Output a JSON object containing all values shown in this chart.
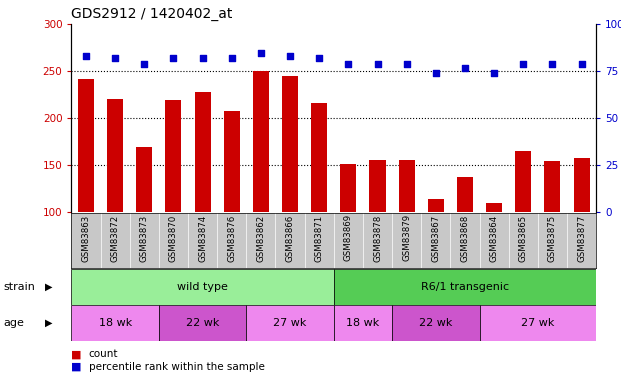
{
  "title": "GDS2912 / 1420402_at",
  "samples": [
    "GSM83863",
    "GSM83872",
    "GSM83873",
    "GSM83870",
    "GSM83874",
    "GSM83876",
    "GSM83862",
    "GSM83866",
    "GSM83871",
    "GSM83869",
    "GSM83878",
    "GSM83879",
    "GSM83867",
    "GSM83868",
    "GSM83864",
    "GSM83865",
    "GSM83875",
    "GSM83877"
  ],
  "bar_values": [
    242,
    220,
    169,
    219,
    228,
    208,
    250,
    245,
    216,
    151,
    155,
    155,
    114,
    137,
    110,
    165,
    154,
    157
  ],
  "dot_values_pct": [
    83,
    82,
    79,
    82,
    82,
    82,
    85,
    83,
    82,
    79,
    79,
    79,
    74,
    77,
    74,
    79,
    79,
    79
  ],
  "bar_color": "#cc0000",
  "dot_color": "#0000cc",
  "ylim_left": [
    100,
    300
  ],
  "ylim_right": [
    0,
    100
  ],
  "yticks_left": [
    100,
    150,
    200,
    250,
    300
  ],
  "yticks_right": [
    0,
    25,
    50,
    75,
    100
  ],
  "grid_values": [
    150,
    200,
    250
  ],
  "strain_groups": [
    {
      "label": "wild type",
      "start": 0,
      "end": 9,
      "color": "#99ee99"
    },
    {
      "label": "R6/1 transgenic",
      "start": 9,
      "end": 18,
      "color": "#55cc55"
    }
  ],
  "age_groups": [
    {
      "label": "18 wk",
      "start": 0,
      "end": 3,
      "color": "#ee88ee"
    },
    {
      "label": "22 wk",
      "start": 3,
      "end": 6,
      "color": "#cc55cc"
    },
    {
      "label": "27 wk",
      "start": 6,
      "end": 9,
      "color": "#ee88ee"
    },
    {
      "label": "18 wk",
      "start": 9,
      "end": 11,
      "color": "#ee88ee"
    },
    {
      "label": "22 wk",
      "start": 11,
      "end": 14,
      "color": "#cc55cc"
    },
    {
      "label": "27 wk",
      "start": 14,
      "end": 18,
      "color": "#ee88ee"
    }
  ],
  "legend_items": [
    {
      "label": "count",
      "color": "#cc0000"
    },
    {
      "label": "percentile rank within the sample",
      "color": "#0000cc"
    }
  ],
  "bg_color": "#ffffff",
  "xlabels_bg": "#c8c8c8",
  "tick_color_left": "#cc0000",
  "tick_color_right": "#0000cc",
  "title_fontsize": 10,
  "bar_fontsize": 6,
  "annot_fontsize": 8
}
